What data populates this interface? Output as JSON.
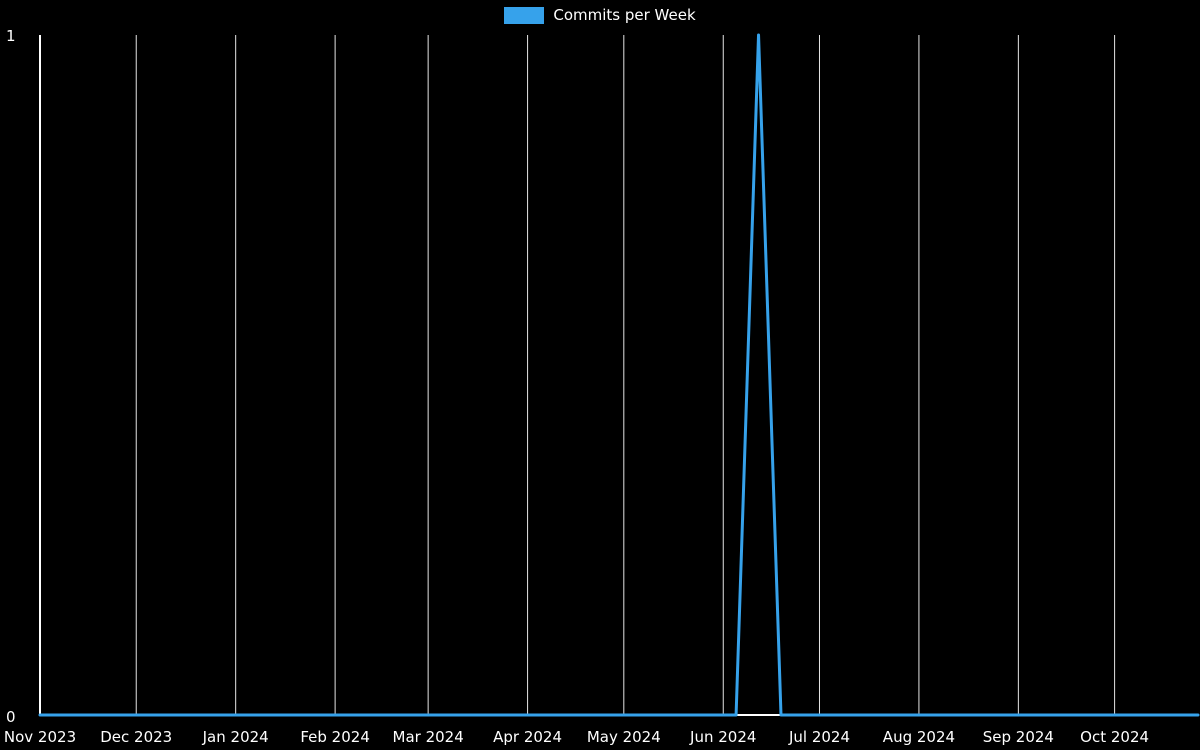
{
  "chart_data": {
    "type": "line",
    "title": "",
    "legend": {
      "position": "top-center"
    },
    "background_color": "#000000",
    "axis_color": "#ffffff",
    "grid_color": "#ffffff",
    "grid": "vertical-month-lines-only",
    "ylim": [
      0,
      1
    ],
    "yticks": [
      0,
      1
    ],
    "x_tick_labels": [
      "Nov 2023",
      "Dec 2023",
      "Jan 2024",
      "Feb 2024",
      "Mar 2024",
      "Apr 2024",
      "May 2024",
      "Jun 2024",
      "Jul 2024",
      "Aug 2024",
      "Sep 2024",
      "Oct 2024"
    ],
    "x_tick_days": [
      0,
      30,
      61,
      92,
      121,
      152,
      182,
      213,
      243,
      274,
      305,
      335
    ],
    "x_domain_days": [
      0,
      361
    ],
    "series": [
      {
        "name": "Commits per Week",
        "color": "#36a2eb",
        "points": [
          {
            "day": 0,
            "value": 0
          },
          {
            "day": 217,
            "value": 0
          },
          {
            "day": 224,
            "value": 1
          },
          {
            "day": 231,
            "value": 0
          },
          {
            "day": 361,
            "value": 0
          }
        ],
        "peak": {
          "approx_x": "mid-June 2024",
          "value": 1
        }
      }
    ]
  }
}
